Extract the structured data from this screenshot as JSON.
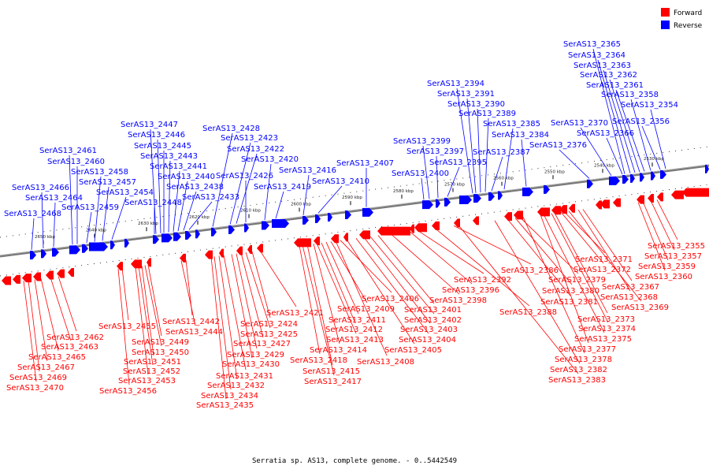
{
  "caption": "Serratia sp. AS13, complete genome. - 0..5442549",
  "colors": {
    "forward": "#ff0000",
    "reverse": "#0000ff",
    "backbone": "#777777"
  },
  "legend": {
    "forward": "Forward",
    "reverse": "Reverse"
  },
  "ticks": [
    "2650 kbp",
    "2640 kbp",
    "2630 kbp",
    "2620 kbp",
    "2610 kbp",
    "2600 kbp",
    "2590 kbp",
    "2580 kbp",
    "2570 kbp",
    "2560 kbp",
    "2550 kbp",
    "2540 kbp",
    "2530 kbp"
  ],
  "reverse_genes": [
    "SerAS13_2468",
    "SerAS13_2466",
    "SerAS13_2464",
    "SerAS13_2461",
    "SerAS13_2460",
    "SerAS13_2459",
    "SerAS13_2458",
    "SerAS13_2457",
    "SerAS13_2454",
    "SerAS13_2448",
    "SerAS13_2447",
    "SerAS13_2446",
    "SerAS13_2445",
    "SerAS13_2443",
    "SerAS13_2441",
    "SerAS13_2440",
    "SerAS13_2438",
    "SerAS13_2433",
    "SerAS13_2428",
    "SerAS13_2423",
    "SerAS13_2422",
    "SerAS13_2426",
    "SerAS13_2420",
    "SerAS13_2419",
    "SerAS13_2416",
    "SerAS13_2410",
    "SerAS13_2407",
    "SerAS13_2400",
    "SerAS13_2399",
    "SerAS13_2397",
    "SerAS13_2395",
    "SerAS13_2394",
    "SerAS13_2391",
    "SerAS13_2390",
    "SerAS13_2389",
    "SerAS13_2387",
    "SerAS13_2385",
    "SerAS13_2384",
    "SerAS13_2376",
    "SerAS13_2370",
    "SerAS13_2366",
    "SerAS13_2365",
    "SerAS13_2364",
    "SerAS13_2363",
    "SerAS13_2362",
    "SerAS13_2361",
    "SerAS13_2358",
    "SerAS13_2356",
    "SerAS13_2354"
  ],
  "forward_genes": [
    "SerAS13_2470",
    "SerAS13_2469",
    "SerAS13_2467",
    "SerAS13_2465",
    "SerAS13_2463",
    "SerAS13_2462",
    "SerAS13_2456",
    "SerAS13_2455",
    "SerAS13_2453",
    "SerAS13_2452",
    "SerAS13_2451",
    "SerAS13_2450",
    "SerAS13_2449",
    "SerAS13_2444",
    "SerAS13_2442",
    "SerAS13_2435",
    "SerAS13_2434",
    "SerAS13_2432",
    "SerAS13_2431",
    "SerAS13_2430",
    "SerAS13_2429",
    "SerAS13_2427",
    "SerAS13_2425",
    "SerAS13_2424",
    "SerAS13_2421",
    "SerAS13_2418",
    "SerAS13_2417",
    "SerAS13_2415",
    "SerAS13_2414",
    "SerAS13_2413",
    "SerAS13_2412",
    "SerAS13_2411",
    "SerAS13_2409",
    "SerAS13_2408",
    "SerAS13_2406",
    "SerAS13_2405",
    "SerAS13_2404",
    "SerAS13_2403",
    "SerAS13_2402",
    "SerAS13_2401",
    "SerAS13_2398",
    "SerAS13_2396",
    "SerAS13_2392",
    "SerAS13_2388",
    "SerAS13_2386",
    "SerAS13_2383",
    "SerAS13_2382",
    "SerAS13_2381",
    "SerAS13_2380",
    "SerAS13_2379",
    "SerAS13_2378",
    "SerAS13_2377",
    "SerAS13_2375",
    "SerAS13_2374",
    "SerAS13_2373",
    "SerAS13_2372",
    "SerAS13_2371",
    "SerAS13_2369",
    "SerAS13_2368",
    "SerAS13_2367",
    "SerAS13_2360",
    "SerAS13_2359",
    "SerAS13_2357",
    "SerAS13_2355"
  ]
}
